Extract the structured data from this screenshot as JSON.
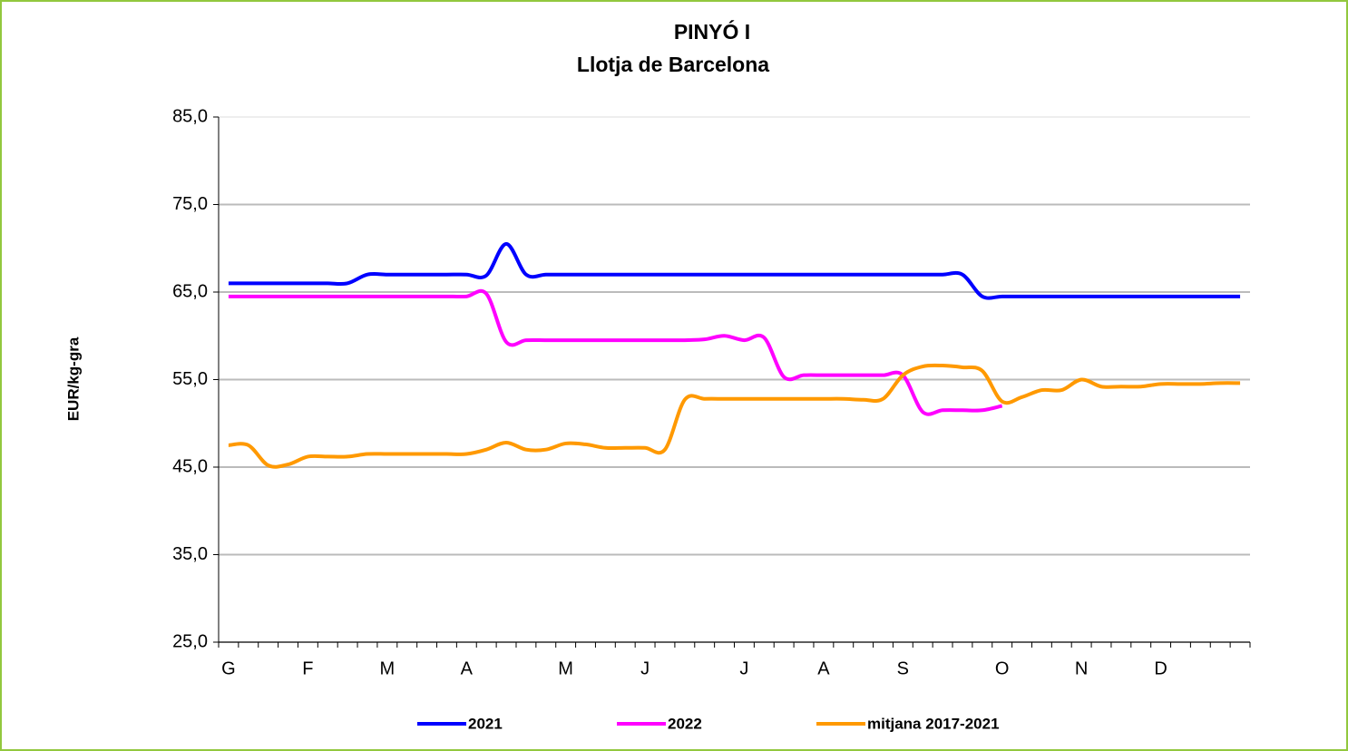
{
  "chart_data": {
    "type": "line",
    "title": "PINYÓ I",
    "subtitle": "Llotja de Barcelona",
    "y_label": "EUR/kg-gra",
    "categories": [
      "G",
      null,
      null,
      null,
      "F",
      null,
      null,
      null,
      "M",
      null,
      null,
      null,
      "A",
      null,
      null,
      null,
      null,
      "M",
      null,
      null,
      null,
      "J",
      null,
      null,
      null,
      null,
      "J",
      null,
      null,
      null,
      "A",
      null,
      null,
      null,
      "S",
      null,
      null,
      null,
      null,
      "O",
      null,
      null,
      null,
      "N",
      null,
      null,
      null,
      "D",
      null,
      null,
      null,
      null
    ],
    "series": [
      {
        "name": "2021",
        "color": "#0000ff",
        "values": [
          66,
          66,
          66,
          66,
          66,
          66,
          66,
          67,
          67,
          67,
          67,
          67,
          67,
          66.9,
          70.5,
          67,
          67,
          67,
          67,
          67,
          67,
          67,
          67,
          67,
          67,
          67,
          67,
          67,
          67,
          67,
          67,
          67,
          67,
          67,
          67,
          67,
          67,
          67,
          64.5,
          64.5,
          64.5,
          64.5,
          64.5,
          64.5,
          64.5,
          64.5,
          64.5,
          64.5,
          64.5,
          64.5,
          64.5,
          64.5
        ]
      },
      {
        "name": "2022",
        "color": "#ff00ff",
        "values": [
          64.5,
          64.5,
          64.5,
          64.5,
          64.5,
          64.5,
          64.5,
          64.5,
          64.5,
          64.5,
          64.5,
          64.5,
          64.5,
          64.8,
          59.3,
          59.5,
          59.5,
          59.5,
          59.5,
          59.5,
          59.5,
          59.5,
          59.5,
          59.5,
          59.6,
          60,
          59.5,
          59.8,
          55.3,
          55.5,
          55.5,
          55.5,
          55.5,
          55.5,
          55.5,
          51.3,
          51.5,
          51.5,
          51.5,
          52,
          null,
          null,
          null,
          null,
          null,
          null,
          null,
          null,
          null,
          null,
          null,
          null
        ]
      },
      {
        "name": "mitjana 2017-2021",
        "color": "#ff9900",
        "values": [
          47.5,
          47.5,
          45.2,
          45.3,
          46.2,
          46.2,
          46.2,
          46.5,
          46.5,
          46.5,
          46.5,
          46.5,
          46.5,
          47,
          47.8,
          47,
          47,
          47.7,
          47.6,
          47.2,
          47.2,
          47.2,
          47,
          52.7,
          52.8,
          52.8,
          52.8,
          52.8,
          52.8,
          52.8,
          52.8,
          52.8,
          52.7,
          52.8,
          55.5,
          56.5,
          56.6,
          56.4,
          56,
          52.5,
          53,
          53.8,
          53.8,
          55,
          54.2,
          54.2,
          54.2,
          54.5,
          54.5,
          54.5,
          54.6,
          54.6
        ]
      }
    ],
    "ylim": [
      25,
      85
    ],
    "yticks": [
      {
        "value": 25,
        "label": "25,0"
      },
      {
        "value": 35,
        "label": "35,0"
      },
      {
        "value": 45,
        "label": "45,0"
      },
      {
        "value": 55,
        "label": "55,0"
      },
      {
        "value": 65,
        "label": "65,0"
      },
      {
        "value": 75,
        "label": "75,0"
      },
      {
        "value": 85,
        "label": "85,0"
      }
    ],
    "grid": true,
    "legend": "bottom"
  }
}
